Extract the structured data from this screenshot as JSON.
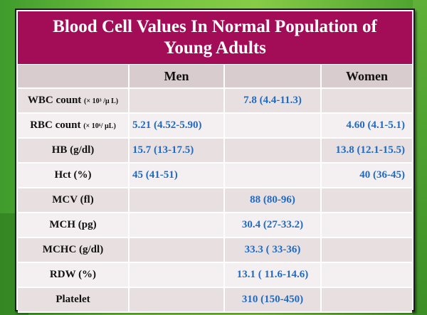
{
  "title": {
    "line1": "Blood Cell Values In Normal Population of",
    "line2": "Young Adults"
  },
  "columns": {
    "label": "",
    "men": "Men",
    "common": "",
    "women": "Women"
  },
  "rows": [
    {
      "label": "WBC count",
      "unit": "(× 10³ /µ L)",
      "men": "",
      "common": "7.8 (4.4-11.3)",
      "women": ""
    },
    {
      "label": "RBC count",
      "unit": "(× 10⁶/ µL)",
      "men": "5.21 (4.52-5.90)",
      "common": "",
      "women": "4.60 (4.1-5.1)"
    },
    {
      "label": "HB (g/dl)",
      "unit": "",
      "men": "15.7 (13-17.5)",
      "common": "",
      "women": "13.8  (12.1-15.5)"
    },
    {
      "label": "Hct (%)",
      "unit": "",
      "men": "45 (41-51)",
      "common": "",
      "women": "40 (36-45)"
    },
    {
      "label": "MCV (fl)",
      "unit": "",
      "men": "",
      "common": "88 (80-96)",
      "women": ""
    },
    {
      "label": "MCH (pg)",
      "unit": "",
      "men": "",
      "common": "30.4 (27-33.2)",
      "women": ""
    },
    {
      "label": "MCHC (g/dl)",
      "unit": "",
      "men": "",
      "common": "33.3 ( 33-36)",
      "women": ""
    },
    {
      "label": "RDW (%)",
      "unit": "",
      "men": "",
      "common": "13.1 ( 11.6-14.6)",
      "women": ""
    },
    {
      "label": "Platelet",
      "unit": "",
      "men": "",
      "common": "310 (150-450)",
      "women": ""
    }
  ]
}
